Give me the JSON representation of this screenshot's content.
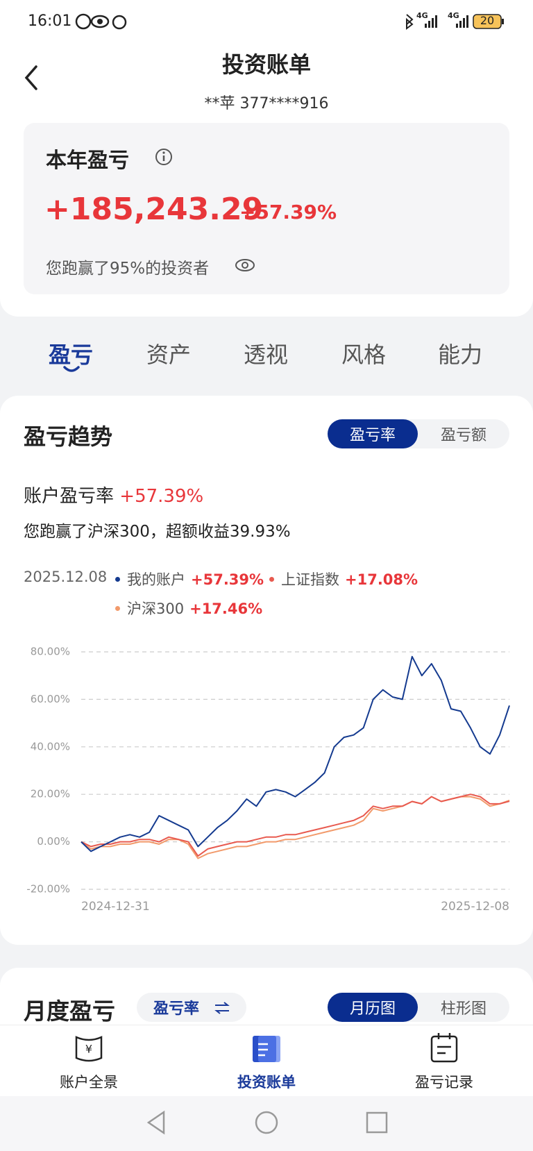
{
  "status_bar": {
    "time": "16:01",
    "network": [
      "4G",
      "4G"
    ],
    "battery": "20"
  },
  "header": {
    "title": "投资账单",
    "account": "**苹 377****916"
  },
  "summary": {
    "label": "本年盈亏",
    "amount": "+185,243.29",
    "rate": "+57.39%",
    "beat": "您跑赢了95%的投资者"
  },
  "tabs": [
    "盈亏",
    "资产",
    "透视",
    "风格",
    "能力"
  ],
  "trend": {
    "title": "盈亏趋势",
    "toggle": [
      "盈亏率",
      "盈亏额"
    ],
    "rate_label": "账户盈亏率",
    "rate": "+57.39%",
    "beat": "您跑赢了沪深300，超额收益39.93%",
    "date": "2025.12.08",
    "legend_values": [
      "+57.39%",
      "+17.08%",
      "+17.46%"
    ]
  },
  "chart_data": {
    "type": "line",
    "categories": [
      "2024-12-31",
      null,
      null,
      null,
      null,
      null,
      null,
      null,
      null,
      null,
      null,
      null,
      null,
      null,
      null,
      null,
      null,
      null,
      null,
      null,
      null,
      null,
      null,
      null,
      null,
      null,
      null,
      null,
      null,
      null,
      null,
      null,
      null,
      null,
      null,
      null,
      null,
      null,
      null,
      null,
      null,
      null,
      null,
      null,
      "2025-12-08"
    ],
    "series": [
      {
        "name": "我的账户",
        "color": "#143a8f",
        "values": [
          0,
          -4,
          -2,
          0,
          2,
          3,
          2,
          4,
          11,
          9,
          7,
          5,
          -2,
          2,
          6,
          9,
          13,
          18,
          15,
          21,
          22,
          21,
          19,
          22,
          25,
          29,
          40,
          44,
          45,
          48,
          60,
          64,
          61,
          60,
          78,
          70,
          75,
          68,
          56,
          55,
          48,
          40,
          37,
          45,
          57.39
        ]
      },
      {
        "name": "上证指数",
        "color": "#e85a4f",
        "values": [
          0,
          -2,
          -1,
          -1,
          0,
          0,
          1,
          1,
          0,
          2,
          1,
          0,
          -6,
          -3,
          -2,
          -1,
          0,
          0,
          1,
          2,
          2,
          3,
          3,
          4,
          5,
          6,
          7,
          8,
          9,
          11,
          15,
          14,
          15,
          15,
          17,
          16,
          19,
          17,
          18,
          19,
          20,
          19,
          16,
          16,
          17.08
        ]
      },
      {
        "name": "沪深300",
        "color": "#f29a6b",
        "values": [
          0,
          -3,
          -2,
          -2,
          -1,
          -1,
          0,
          0,
          -1,
          1,
          1,
          -1,
          -7,
          -5,
          -4,
          -3,
          -2,
          -2,
          -1,
          0,
          0,
          1,
          1,
          2,
          3,
          4,
          5,
          6,
          7,
          9,
          14,
          13,
          14,
          15,
          17,
          16,
          19,
          17,
          18,
          19,
          19,
          18,
          15,
          16,
          17.46
        ]
      }
    ],
    "ylim": [
      -20,
      80
    ],
    "yticks": [
      {
        "value": -20,
        "label": "-20.00%"
      },
      {
        "value": 0,
        "label": "0.00%"
      },
      {
        "value": 20,
        "label": "20.00%"
      },
      {
        "value": 40,
        "label": "40.00%"
      },
      {
        "value": 60,
        "label": "60.00%"
      },
      {
        "value": 80,
        "label": "80.00%"
      }
    ],
    "grid": true
  },
  "monthly": {
    "title": "月度盈亏",
    "metric": "盈亏率",
    "toggle": [
      "月历图",
      "柱形图"
    ]
  },
  "nav": [
    "账户全景",
    "投资账单",
    "盈亏记录"
  ]
}
